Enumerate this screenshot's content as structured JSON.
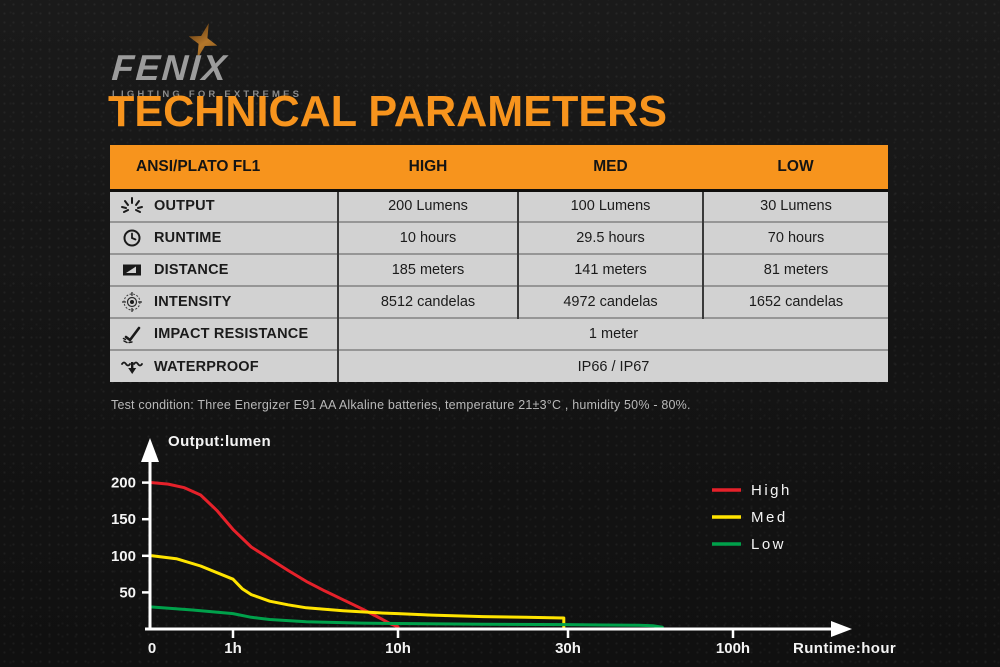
{
  "logo": {
    "brand": "FENIX",
    "tagline": "LIGHTING FOR EXTREMES"
  },
  "title": "TECHNICAL PARAMETERS",
  "table": {
    "corner_label": "ANSI/PLATO FL1",
    "columns": [
      "HIGH",
      "MED",
      "LOW"
    ],
    "rows": [
      {
        "icon": "output-icon",
        "label": "OUTPUT",
        "values": [
          "200 Lumens",
          "100 Lumens",
          "30 Lumens"
        ]
      },
      {
        "icon": "runtime-icon",
        "label": "RUNTIME",
        "values": [
          "10 hours",
          "29.5 hours",
          "70 hours"
        ]
      },
      {
        "icon": "distance-icon",
        "label": "DISTANCE",
        "values": [
          "185 meters",
          "141 meters",
          "81 meters"
        ]
      },
      {
        "icon": "intensity-icon",
        "label": "INTENSITY",
        "values": [
          "8512 candelas",
          "4972 candelas",
          "1652 candelas"
        ]
      },
      {
        "icon": "impact-icon",
        "label": "IMPACT RESISTANCE",
        "values": [
          "1 meter"
        ]
      },
      {
        "icon": "waterproof-icon",
        "label": "WATERPROOF",
        "values": [
          "IP66 / IP67"
        ]
      }
    ]
  },
  "footnote": "Test condition: Three Energizer E91 AA Alkaline batteries, temperature 21±3°C , humidity 50% - 80%.",
  "chart_data": {
    "type": "line",
    "title": "",
    "ylabel": "Output:lumen",
    "xlabel": "Runtime:hour",
    "x_ticks": {
      "values": [
        0,
        1,
        10,
        30,
        100
      ],
      "labels": [
        "0",
        "1h",
        "10h",
        "30h",
        "100h"
      ]
    },
    "y_ticks": [
      50,
      100,
      150,
      200
    ],
    "ylim": [
      0,
      220
    ],
    "grid": false,
    "legend_position": "right",
    "series": [
      {
        "name": "High",
        "color": "#e6212a",
        "runtime_hours": 10,
        "points": [
          [
            0,
            200
          ],
          [
            0.2,
            198
          ],
          [
            0.4,
            193
          ],
          [
            0.6,
            183
          ],
          [
            0.8,
            162
          ],
          [
            1,
            136
          ],
          [
            2,
            112
          ],
          [
            3,
            96
          ],
          [
            4,
            80
          ],
          [
            5,
            65
          ],
          [
            6,
            52
          ],
          [
            7,
            40
          ],
          [
            8,
            28
          ],
          [
            9,
            15
          ],
          [
            9.6,
            7
          ],
          [
            10,
            3
          ],
          [
            10,
            0
          ]
        ]
      },
      {
        "name": "Med",
        "color": "#ffe400",
        "runtime_hours": 29.5,
        "points": [
          [
            0,
            100
          ],
          [
            0.3,
            96
          ],
          [
            0.6,
            86
          ],
          [
            1,
            68
          ],
          [
            1.5,
            55
          ],
          [
            2,
            47
          ],
          [
            3,
            38
          ],
          [
            4,
            33
          ],
          [
            5,
            29
          ],
          [
            7,
            25
          ],
          [
            9,
            22
          ],
          [
            10,
            21
          ],
          [
            14,
            19
          ],
          [
            20,
            17
          ],
          [
            25,
            16
          ],
          [
            29.5,
            15
          ],
          [
            29.5,
            0
          ]
        ]
      },
      {
        "name": "Low",
        "color": "#00a14b",
        "runtime_hours": 70,
        "points": [
          [
            0,
            30
          ],
          [
            0.5,
            26
          ],
          [
            1,
            21
          ],
          [
            2,
            16
          ],
          [
            3,
            13
          ],
          [
            5,
            10
          ],
          [
            8,
            8
          ],
          [
            10,
            7.5
          ],
          [
            15,
            7
          ],
          [
            20,
            6.5
          ],
          [
            30,
            6
          ],
          [
            45,
            5.5
          ],
          [
            60,
            5
          ],
          [
            66,
            4.5
          ],
          [
            70,
            2.5
          ]
        ]
      }
    ]
  },
  "colors": {
    "accent_orange": "#f7941d",
    "table_row_bg": "#d2d2d2",
    "background": "#151515",
    "axis_white": "#ffffff",
    "high_red": "#e6212a",
    "med_yellow": "#ffe400",
    "low_green": "#00a14b"
  }
}
